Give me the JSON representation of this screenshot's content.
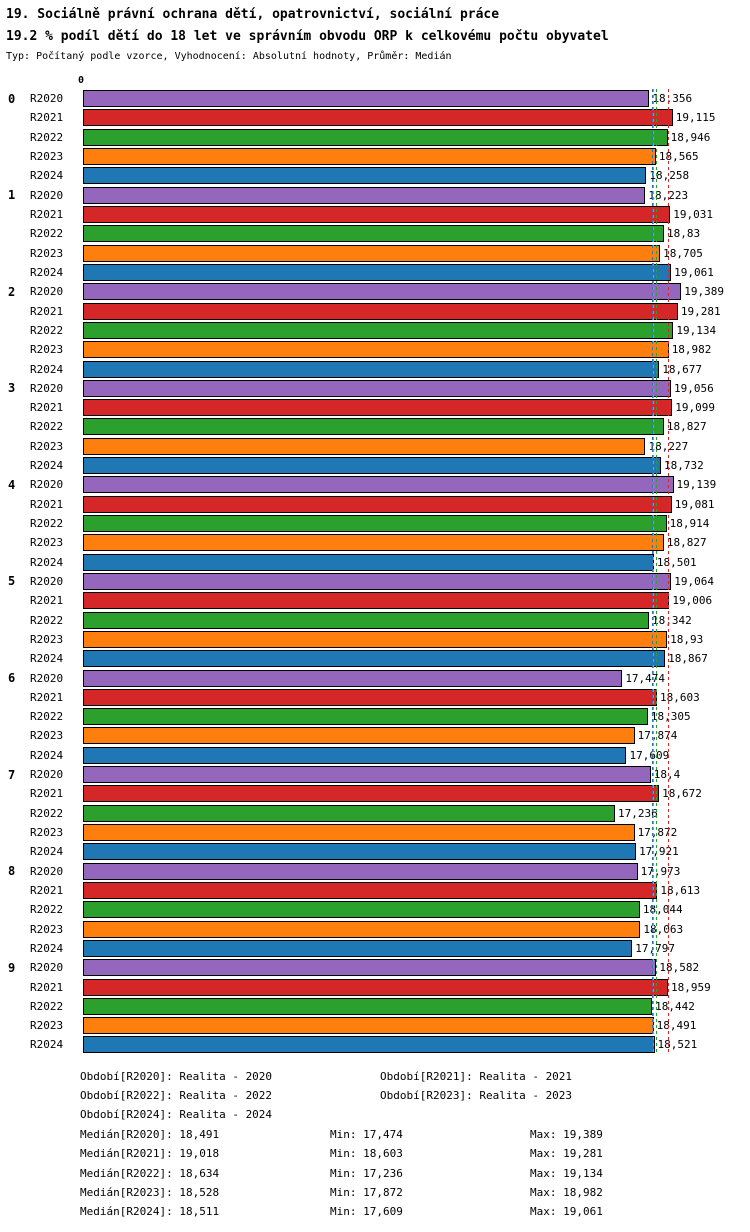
{
  "header": {
    "title_line1": "19. Sociálně právní ochrana dětí, opatrovnictví, sociální práce",
    "title_line2": "19.2 % podíl dětí do 18 let ve správním obvodu ORP k celkovému počtu obyvatel",
    "subtitle": "Typ: Počítaný podle vzorce, Vyhodnocení: Absolutní hodnoty, Průměr: Medián"
  },
  "chart_data": {
    "type": "bar",
    "orientation": "horizontal",
    "x_axis_origin_label": "0",
    "xlim": [
      0,
      19.389
    ],
    "grid": false,
    "legend_position": "bottom",
    "series": [
      {
        "name": "R2020",
        "color": "#9467bd",
        "median": "18,491",
        "min": "17,474",
        "max": "19,389"
      },
      {
        "name": "R2021",
        "color": "#d62728",
        "median": "19,018",
        "min": "18,603",
        "max": "19,281"
      },
      {
        "name": "R2022",
        "color": "#2ca02c",
        "median": "18,634",
        "min": "17,236",
        "max": "19,134"
      },
      {
        "name": "R2023",
        "color": "#ff7f0e",
        "median": "18,528",
        "min": "17,872",
        "max": "18,982"
      },
      {
        "name": "R2024",
        "color": "#1f77b4",
        "median": "18,511",
        "min": "17,609",
        "max": "19,061"
      }
    ],
    "groups": [
      {
        "label": "0",
        "values": [
          "18,356",
          "19,115",
          "18,946",
          "18,565",
          "18,258"
        ]
      },
      {
        "label": "1",
        "values": [
          "18,223",
          "19,031",
          "18,83",
          "18,705",
          "19,061"
        ]
      },
      {
        "label": "2",
        "values": [
          "19,389",
          "19,281",
          "19,134",
          "18,982",
          "18,677"
        ]
      },
      {
        "label": "3",
        "values": [
          "19,056",
          "19,099",
          "18,827",
          "18,227",
          "18,732"
        ]
      },
      {
        "label": "4",
        "values": [
          "19,139",
          "19,081",
          "18,914",
          "18,827",
          "18,501"
        ]
      },
      {
        "label": "5",
        "values": [
          "19,064",
          "19,006",
          "18,342",
          "18,93",
          "18,867"
        ]
      },
      {
        "label": "6",
        "values": [
          "17,474",
          "18,603",
          "18,305",
          "17,874",
          "17,609"
        ]
      },
      {
        "label": "7",
        "values": [
          "18,4",
          "18,672",
          "17,236",
          "17,872",
          "17,921"
        ]
      },
      {
        "label": "8",
        "values": [
          "17,973",
          "18,613",
          "18,044",
          "18,063",
          "17,797"
        ]
      },
      {
        "label": "9",
        "values": [
          "18,582",
          "18,959",
          "18,442",
          "18,491",
          "18,521"
        ]
      }
    ]
  },
  "legend": {
    "periods": [
      "Období[R2020]: Realita - 2020",
      "Období[R2021]: Realita - 2021",
      "Období[R2022]: Realita - 2022",
      "Období[R2023]: Realita - 2023",
      "Období[R2024]: Realita - 2024"
    ],
    "stats": [
      {
        "median": "Medián[R2020]: 18,491",
        "min": "Min: 17,474",
        "max": "Max: 19,389"
      },
      {
        "median": "Medián[R2021]: 19,018",
        "min": "Min: 18,603",
        "max": "Max: 19,281"
      },
      {
        "median": "Medián[R2022]: 18,634",
        "min": "Min: 17,236",
        "max": "Max: 19,134"
      },
      {
        "median": "Medián[R2023]: 18,528",
        "min": "Min: 17,872",
        "max": "Max: 18,982"
      },
      {
        "median": "Medián[R2024]: 18,511",
        "min": "Min: 17,609",
        "max": "Max: 19,061"
      }
    ]
  }
}
